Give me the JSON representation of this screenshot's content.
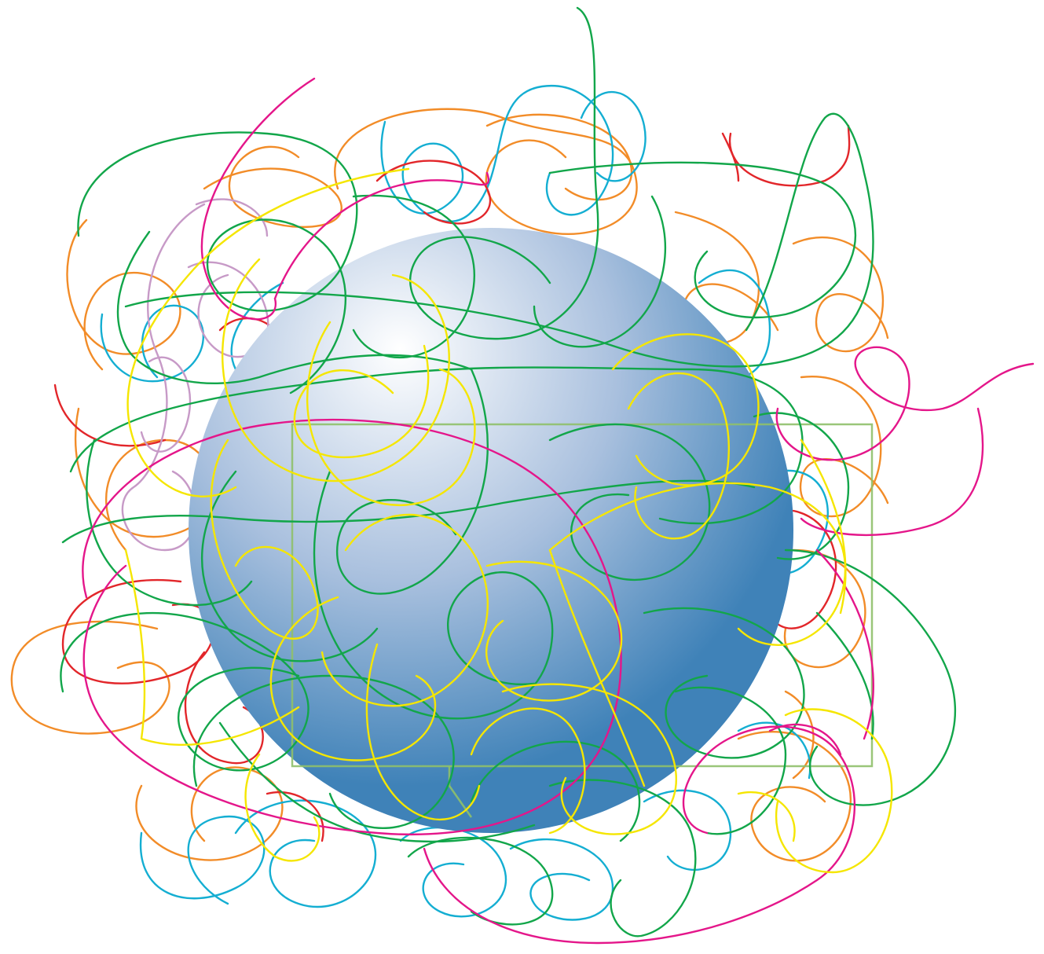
{
  "artwork": {
    "subject": "",
    "background_color": "#ffffff",
    "sphere": {
      "highlight_color": "#ffffff",
      "mid_color": "#a9c0de",
      "shadow_color": "#3f82b8"
    },
    "overlay_rectangle_color": "#8fc06a",
    "scribble_colors": {
      "green": "#12a64a",
      "orange": "#f28c28",
      "cyan": "#14aed2",
      "magenta": "#e4168a",
      "yellow": "#f5e600",
      "red": "#e2262a",
      "lilac": "#c79ac7"
    }
  }
}
